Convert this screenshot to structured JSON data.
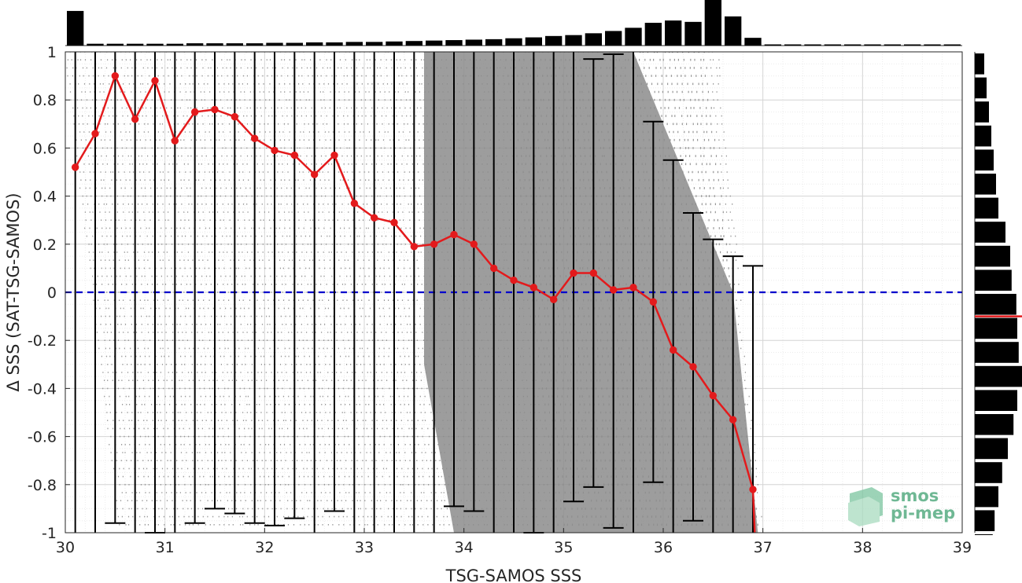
{
  "chart_data": {
    "type": "scatter",
    "xlabel": "TSG-SAMOS SSS",
    "ylabel": "Δ SSS (SAT-TSG-SAMOS)",
    "xlim": [
      30,
      39
    ],
    "ylim": [
      -1,
      1
    ],
    "x_ticks": [
      "30",
      "31",
      "32",
      "33",
      "34",
      "35",
      "36",
      "37",
      "38",
      "39"
    ],
    "y_ticks": [
      "1",
      "0.8",
      "0.6",
      "0.4",
      "0.2",
      "0",
      "-0.2",
      "-0.4",
      "-0.6",
      "-0.8",
      "-1"
    ],
    "grid": true,
    "minor_grid": true,
    "zero_line": {
      "y": 0,
      "color": "#0000cc",
      "style": "dashed"
    },
    "scatter_color": "#8c8c8c",
    "mean_series": {
      "color": "#e31a1c",
      "x": [
        30.1,
        30.3,
        30.5,
        30.7,
        30.9,
        31.1,
        31.3,
        31.5,
        31.7,
        31.9,
        32.1,
        32.3,
        32.5,
        32.7,
        32.9,
        33.1,
        33.3,
        33.5,
        33.7,
        33.9,
        34.1,
        34.3,
        34.5,
        34.7,
        34.9,
        35.1,
        35.3,
        35.5,
        35.7,
        35.9,
        36.1,
        36.3,
        36.5,
        36.7,
        36.9
      ],
      "y": [
        0.52,
        0.66,
        0.9,
        0.72,
        0.88,
        0.63,
        0.75,
        0.76,
        0.73,
        0.64,
        0.59,
        0.57,
        0.49,
        0.57,
        0.37,
        0.31,
        0.29,
        0.19,
        0.2,
        0.24,
        0.2,
        0.1,
        0.05,
        0.02,
        -0.03,
        0.08,
        0.08,
        0.01,
        0.02,
        -0.04,
        -0.24,
        -0.31,
        -0.43,
        -0.53,
        -0.82
      ]
    },
    "error_bars": {
      "color": "#000000",
      "x": [
        30.1,
        30.3,
        30.5,
        30.7,
        30.9,
        31.1,
        31.3,
        31.5,
        31.7,
        31.9,
        32.1,
        32.3,
        32.5,
        32.7,
        32.9,
        33.1,
        33.3,
        33.5,
        33.7,
        33.9,
        34.1,
        34.3,
        34.5,
        34.7,
        34.9,
        35.1,
        35.3,
        35.5,
        35.7,
        35.9,
        36.1,
        36.3,
        36.5,
        36.7,
        36.9
      ],
      "upper": [
        1.5,
        1.5,
        1.5,
        1.5,
        1.5,
        1.5,
        1.5,
        1.5,
        1.5,
        1.5,
        1.5,
        1.5,
        1.5,
        1.5,
        1.5,
        1.5,
        1.5,
        1.5,
        1.5,
        1.5,
        1.5,
        1.5,
        1.5,
        1.5,
        1.5,
        1.5,
        0.97,
        0.99,
        1.5,
        0.71,
        0.55,
        0.33,
        0.22,
        0.15,
        0.11
      ],
      "lower": [
        -1.5,
        -1.5,
        -0.96,
        -1.5,
        -1.0,
        -1.5,
        -0.96,
        -0.9,
        -0.92,
        -0.96,
        -0.97,
        -0.94,
        -1.5,
        -0.91,
        -1.5,
        -1.5,
        -1.5,
        -1.5,
        -1.5,
        -0.89,
        -0.91,
        -1.5,
        -1.5,
        -1.0,
        -1.5,
        -0.87,
        -0.81,
        -0.98,
        -1.5,
        -0.79,
        -1.5,
        -0.95,
        -1.5,
        -1.5,
        -1.5
      ]
    },
    "top_histogram": {
      "color": "#000000",
      "x_start": 30.0,
      "bin_width": 0.2,
      "counts": [
        0.76,
        0.04,
        0.04,
        0.04,
        0.04,
        0.04,
        0.05,
        0.05,
        0.05,
        0.05,
        0.06,
        0.06,
        0.07,
        0.07,
        0.08,
        0.08,
        0.09,
        0.1,
        0.11,
        0.12,
        0.13,
        0.14,
        0.16,
        0.18,
        0.21,
        0.23,
        0.27,
        0.32,
        0.39,
        0.5,
        0.55,
        0.52,
        1.0,
        0.64,
        0.17,
        0.02,
        0.02,
        0.02,
        0.02,
        0.02,
        0.02,
        0.02,
        0.02,
        0.02,
        0.02
      ]
    },
    "right_histogram": {
      "color": "#000000",
      "y_start": 1.0,
      "bin_height": 0.1,
      "counts": [
        0.2,
        0.25,
        0.3,
        0.35,
        0.4,
        0.45,
        0.5,
        0.65,
        0.75,
        0.78,
        0.88,
        0.9,
        0.93,
        1.0,
        0.9,
        0.82,
        0.7,
        0.58,
        0.5,
        0.42,
        0.38
      ],
      "mean_line": {
        "y": -0.1,
        "color": "#e31a1c"
      }
    }
  },
  "logo": {
    "line1": "smos",
    "line2": "pi-mep",
    "color": "#6fb894"
  }
}
